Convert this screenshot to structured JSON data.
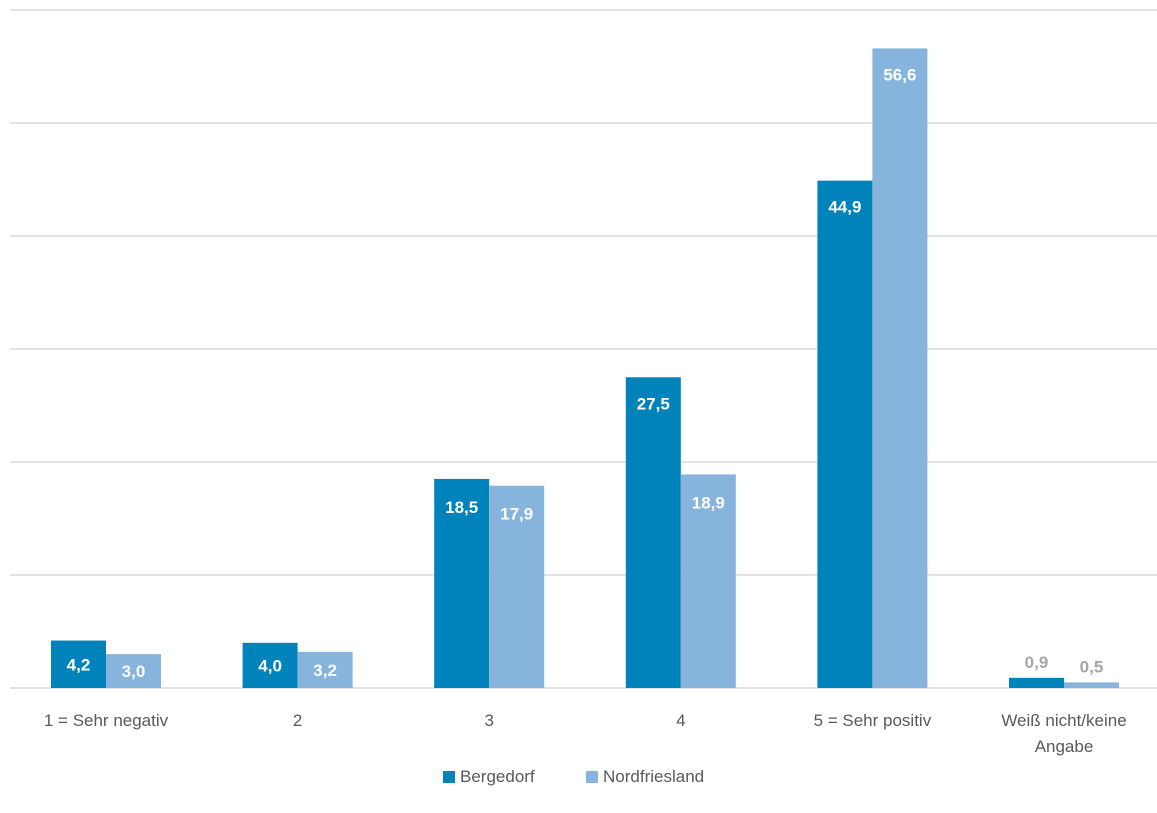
{
  "chart_data": {
    "type": "bar",
    "categories": [
      [
        "1 = Sehr negativ"
      ],
      [
        "2"
      ],
      [
        "3"
      ],
      [
        "4"
      ],
      [
        "5 = Sehr positiv"
      ],
      [
        "Weiß nicht/keine",
        "Angabe"
      ]
    ],
    "series": [
      {
        "name": "Bergedorf",
        "color": "#0083BB",
        "values": [
          4.2,
          4.0,
          18.5,
          27.5,
          44.9,
          0.9
        ],
        "labels": [
          "4,2",
          "4,0",
          "18,5",
          "27,5",
          "44,9",
          "0,9"
        ],
        "label_color": "#ffffff"
      },
      {
        "name": "Nordfriesland",
        "color": "#86B4DC",
        "values": [
          3.0,
          3.2,
          17.9,
          18.9,
          56.6,
          0.5
        ],
        "labels": [
          "3,0",
          "3,2",
          "17,9",
          "18,9",
          "56,6",
          "0,5"
        ],
        "label_color": "#ffffff"
      }
    ],
    "outside_label_color": "#a6a6a6",
    "ylim": [
      0,
      60
    ],
    "grid": true,
    "gridline_color": "#d9d9d9",
    "legend_placement": "bottom-center"
  }
}
